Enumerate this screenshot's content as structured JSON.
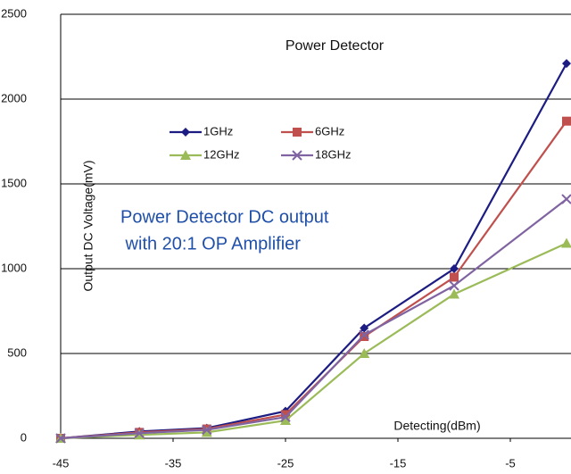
{
  "chart_data": {
    "type": "line",
    "title": "Power Detector",
    "xlabel": "Detecting(dBm)",
    "ylabel": "Output DC Voltage(mV)",
    "annotation": [
      "Power Detector DC output",
      " with 20:1 OP Amplifier"
    ],
    "x": [
      -45,
      -38,
      -32,
      -25,
      -18,
      -10,
      0
    ],
    "series": [
      {
        "name": "1GHz",
        "color": "#1c1c82",
        "marker": "diamond",
        "values": [
          0,
          40,
          60,
          160,
          650,
          1000,
          2210
        ]
      },
      {
        "name": "6GHz",
        "color": "#c0504d",
        "marker": "square",
        "values": [
          0,
          35,
          55,
          140,
          600,
          950,
          1870
        ]
      },
      {
        "name": "12GHz",
        "color": "#9bbb59",
        "marker": "triangle",
        "values": [
          0,
          20,
          35,
          105,
          500,
          850,
          1150
        ]
      },
      {
        "name": "18GHz",
        "color": "#8064a2",
        "marker": "x",
        "values": [
          0,
          30,
          50,
          125,
          610,
          900,
          1410
        ]
      }
    ],
    "xlim": [
      -45,
      0
    ],
    "xticks": [
      -45,
      -35,
      -25,
      -15,
      -5
    ],
    "ylim": [
      0,
      2500
    ],
    "yticks": [
      0,
      500,
      1000,
      1500,
      2000,
      2500
    ],
    "grid": true
  }
}
